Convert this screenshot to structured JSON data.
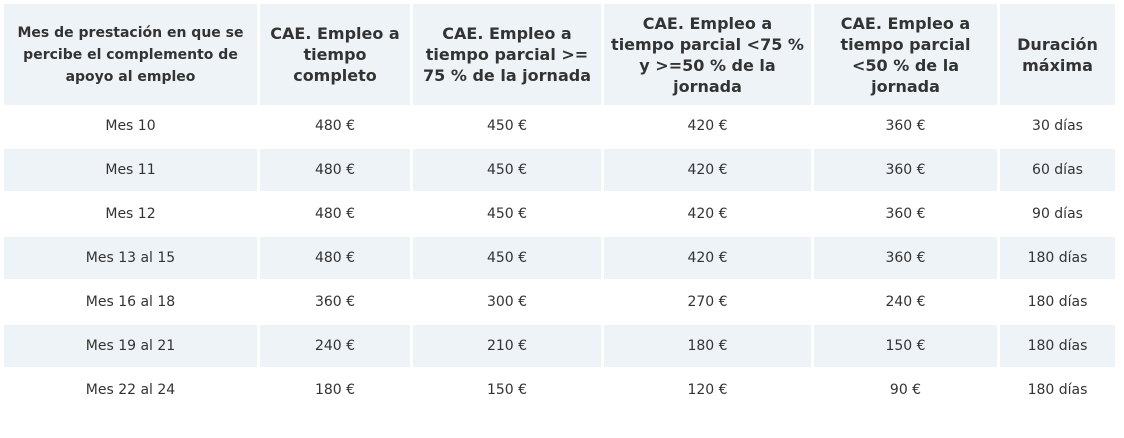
{
  "headers": [
    "Mes de prestación en que se percibe el complemento de apoyo al empleo",
    "CAE. Empleo a tiempo completo",
    "CAE. Empleo a tiempo parcial >= 75 % de la jornada",
    "CAE. Empleo a tiempo parcial <75 % y >=50 % de la jornada",
    "CAE. Empleo a tiempo parcial <50 % de la jornada",
    "Duración máxima"
  ],
  "rows": [
    [
      "Mes 10",
      "480 €",
      "450 €",
      "420 €",
      "360 €",
      "30 días"
    ],
    [
      "Mes 11",
      "480 €",
      "450 €",
      "420 €",
      "360 €",
      "60 días"
    ],
    [
      "Mes 12",
      "480 €",
      "450 €",
      "420 €",
      "360 €",
      "90 días"
    ],
    [
      "Mes 13 al 15",
      "480 €",
      "450 €",
      "420 €",
      "360 €",
      "180 días"
    ],
    [
      "Mes 16 al 18",
      "360 €",
      "300 €",
      "270 €",
      "240 €",
      "180 días"
    ],
    [
      "Mes 19 al 21",
      "240 €",
      "210 €",
      "180 €",
      "150 €",
      "180 días"
    ],
    [
      "Mes 22 al 24",
      "180 €",
      "150 €",
      "120 €",
      "90 €",
      "180 días"
    ]
  ],
  "colors": {
    "shaded_bg": "#eef3f7",
    "text": "#333333"
  }
}
